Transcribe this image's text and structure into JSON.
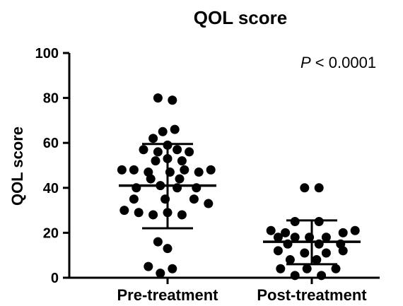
{
  "chart_data": {
    "type": "scatter",
    "title": "QOL score",
    "xlabel": "",
    "ylabel": "QOL score",
    "ylim": [
      0,
      100
    ],
    "yticks": [
      0,
      20,
      40,
      60,
      80,
      100
    ],
    "grid": false,
    "annotation": {
      "italic": "P",
      "text": " < 0.0001"
    },
    "categories": [
      "Pre-treatment",
      "Post-treatment"
    ],
    "series": [
      {
        "category": "Pre-treatment",
        "mean": 41,
        "sd_lower": 22,
        "sd_upper": 59.5,
        "points": [
          {
            "x": -0.4,
            "y": 80
          },
          {
            "x": 0.2,
            "y": 79
          },
          {
            "x": -0.2,
            "y": 65
          },
          {
            "x": 0.3,
            "y": 66
          },
          {
            "x": -0.6,
            "y": 62
          },
          {
            "x": 0.0,
            "y": 59
          },
          {
            "x": -1.0,
            "y": 57
          },
          {
            "x": -0.4,
            "y": 56
          },
          {
            "x": 0.4,
            "y": 57
          },
          {
            "x": 0.9,
            "y": 56
          },
          {
            "x": -0.5,
            "y": 52
          },
          {
            "x": 0.0,
            "y": 53
          },
          {
            "x": 0.6,
            "y": 52
          },
          {
            "x": -1.9,
            "y": 48
          },
          {
            "x": -1.4,
            "y": 48
          },
          {
            "x": -0.8,
            "y": 47
          },
          {
            "x": 0.1,
            "y": 47
          },
          {
            "x": 0.7,
            "y": 48
          },
          {
            "x": 1.3,
            "y": 47
          },
          {
            "x": 1.8,
            "y": 48
          },
          {
            "x": -0.7,
            "y": 44
          },
          {
            "x": 0.5,
            "y": 44
          },
          {
            "x": -1.3,
            "y": 40
          },
          {
            "x": -0.3,
            "y": 41
          },
          {
            "x": 0.4,
            "y": 40
          },
          {
            "x": 1.2,
            "y": 40
          },
          {
            "x": -1.4,
            "y": 35
          },
          {
            "x": -0.1,
            "y": 35
          },
          {
            "x": 1.1,
            "y": 35
          },
          {
            "x": 1.7,
            "y": 33
          },
          {
            "x": -1.8,
            "y": 30
          },
          {
            "x": -1.2,
            "y": 29
          },
          {
            "x": -0.6,
            "y": 28
          },
          {
            "x": 0.0,
            "y": 29
          },
          {
            "x": 0.6,
            "y": 28
          },
          {
            "x": -0.4,
            "y": 16
          },
          {
            "x": 0.0,
            "y": 13
          },
          {
            "x": -0.8,
            "y": 5
          },
          {
            "x": 0.2,
            "y": 4
          },
          {
            "x": -0.3,
            "y": 2
          }
        ]
      },
      {
        "category": "Post-treatment",
        "mean": 16,
        "sd_lower": 6,
        "sd_upper": 25.5,
        "points": [
          {
            "x": -0.3,
            "y": 40
          },
          {
            "x": 0.3,
            "y": 40
          },
          {
            "x": -0.7,
            "y": 25
          },
          {
            "x": 0.3,
            "y": 25
          },
          {
            "x": -1.7,
            "y": 21
          },
          {
            "x": -1.1,
            "y": 20
          },
          {
            "x": 1.3,
            "y": 20
          },
          {
            "x": 1.8,
            "y": 21
          },
          {
            "x": -1.4,
            "y": 18
          },
          {
            "x": -0.7,
            "y": 18
          },
          {
            "x": -0.1,
            "y": 18
          },
          {
            "x": 0.6,
            "y": 18
          },
          {
            "x": -1.0,
            "y": 15
          },
          {
            "x": 0.3,
            "y": 15
          },
          {
            "x": 1.2,
            "y": 15
          },
          {
            "x": -1.4,
            "y": 12
          },
          {
            "x": -0.3,
            "y": 11
          },
          {
            "x": 0.6,
            "y": 11
          },
          {
            "x": 1.3,
            "y": 12
          },
          {
            "x": -0.9,
            "y": 8
          },
          {
            "x": 0.2,
            "y": 8
          },
          {
            "x": -1.3,
            "y": 4
          },
          {
            "x": -0.2,
            "y": 4
          },
          {
            "x": 1.0,
            "y": 4
          },
          {
            "x": -0.7,
            "y": 1
          },
          {
            "x": 0.4,
            "y": 1
          }
        ]
      }
    ]
  }
}
